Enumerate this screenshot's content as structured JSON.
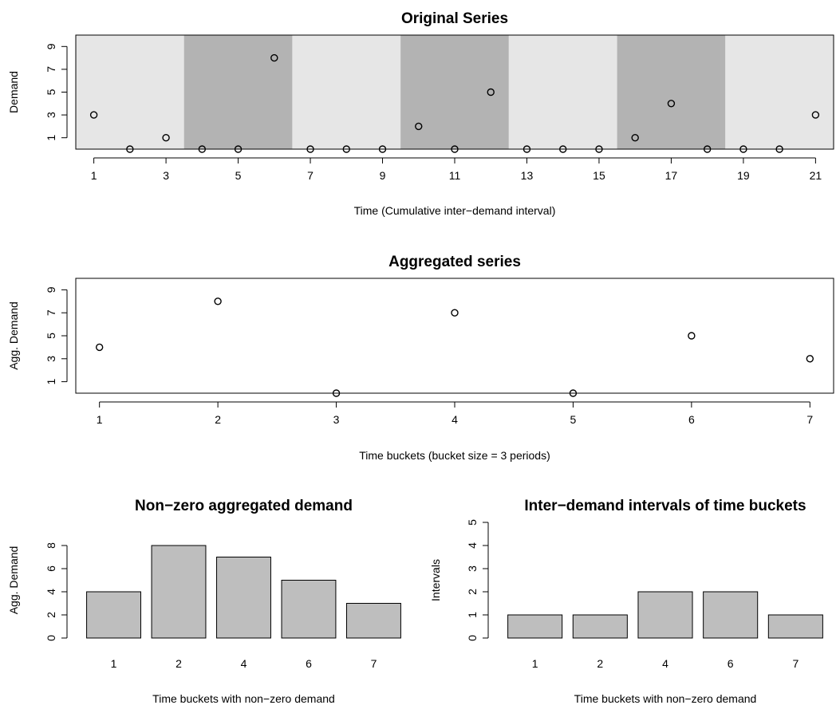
{
  "chart_data": [
    {
      "type": "scatter",
      "title": "Original Series",
      "xlabel": "Time (Cumulative inter−demand interval)",
      "ylabel": "Demand",
      "x": [
        1,
        2,
        3,
        4,
        5,
        6,
        7,
        8,
        9,
        10,
        11,
        12,
        13,
        14,
        15,
        16,
        17,
        18,
        19,
        20,
        21
      ],
      "y": [
        3,
        0,
        1,
        0,
        0,
        8,
        0,
        0,
        0,
        2,
        0,
        5,
        0,
        0,
        0,
        1,
        4,
        0,
        0,
        0,
        3
      ],
      "xlim": [
        0.5,
        21.5
      ],
      "ylim": [
        0,
        10
      ],
      "xticks": [
        1,
        3,
        5,
        7,
        9,
        11,
        13,
        15,
        17,
        19,
        21
      ],
      "yticks": [
        1,
        3,
        5,
        7,
        9
      ],
      "buckets": [
        {
          "from": 0.5,
          "to": 3.5,
          "color": "#e6e6e6"
        },
        {
          "from": 3.5,
          "to": 6.5,
          "color": "#b3b3b3"
        },
        {
          "from": 6.5,
          "to": 9.5,
          "color": "#e6e6e6"
        },
        {
          "from": 9.5,
          "to": 12.5,
          "color": "#b3b3b3"
        },
        {
          "from": 12.5,
          "to": 15.5,
          "color": "#e6e6e6"
        },
        {
          "from": 15.5,
          "to": 18.5,
          "color": "#b3b3b3"
        },
        {
          "from": 18.5,
          "to": 21.5,
          "color": "#e6e6e6"
        }
      ]
    },
    {
      "type": "scatter",
      "title": "Aggregated series",
      "xlabel": "Time buckets (bucket size = 3 periods)",
      "ylabel": "Agg. Demand",
      "x": [
        1,
        2,
        3,
        4,
        5,
        6,
        7
      ],
      "y": [
        4,
        8,
        0,
        7,
        0,
        5,
        3
      ],
      "xlim": [
        0.8,
        7.2
      ],
      "ylim": [
        0,
        10
      ],
      "xticks": [
        1,
        2,
        3,
        4,
        5,
        6,
        7
      ],
      "yticks": [
        1,
        3,
        5,
        7,
        9
      ]
    },
    {
      "type": "bar",
      "title": "Non−zero aggregated demand",
      "xlabel": "Time buckets with non−zero demand",
      "ylabel": "Agg. Demand",
      "categories": [
        "1",
        "2",
        "4",
        "6",
        "7"
      ],
      "values": [
        4,
        8,
        7,
        5,
        3
      ],
      "ylim": [
        0,
        10
      ],
      "yticks": [
        0,
        2,
        4,
        6,
        8
      ],
      "bar_color": "#bebebe"
    },
    {
      "type": "bar",
      "title": "Inter−demand intervals of time buckets",
      "xlabel": "Time buckets with non−zero demand",
      "ylabel": "Intervals",
      "categories": [
        "1",
        "2",
        "4",
        "6",
        "7"
      ],
      "values": [
        1,
        1,
        2,
        2,
        1
      ],
      "ylim": [
        0,
        5
      ],
      "yticks": [
        0,
        1,
        2,
        3,
        4,
        5
      ],
      "bar_color": "#bebebe"
    }
  ]
}
